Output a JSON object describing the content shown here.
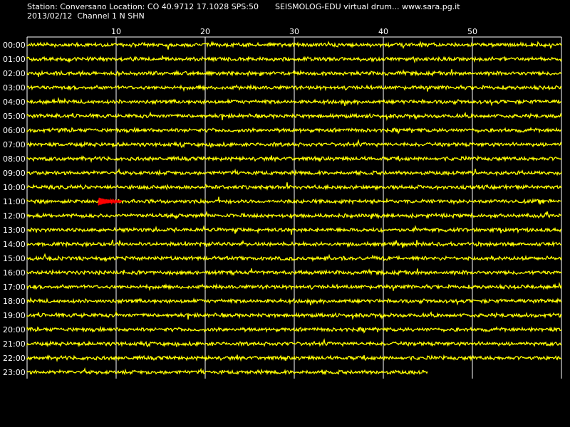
{
  "header": {
    "station_line": "Station: Conversano Location: CO 40.9712 17.1028 SPS:50",
    "brand_line": "SEISMOLOG-EDU virtual drum... www.sara.pg.it",
    "date_line": "2013/02/12  Channel 1 N SHN"
  },
  "chart_data": {
    "type": "line",
    "title": "SEISMOLOG-EDU virtual drum... www.sara.pg.it",
    "xlabel": "",
    "ylabel": "",
    "x_ticks": [
      10,
      20,
      30,
      40,
      50
    ],
    "xlim": [
      0,
      60
    ],
    "row_labels": [
      "00:00",
      "01:00",
      "02:00",
      "03:00",
      "04:00",
      "05:00",
      "06:00",
      "07:00",
      "08:00",
      "09:00",
      "10:00",
      "11:00",
      "12:00",
      "13:00",
      "14:00",
      "15:00",
      "16:00",
      "17:00",
      "18:00",
      "19:00",
      "20:00",
      "21:00",
      "22:00",
      "23:00"
    ],
    "last_row_end_minute": 45,
    "event": {
      "row": "11:00",
      "start_minute": 8,
      "end_minute": 10.6,
      "color": "#ff0000"
    },
    "grid": true,
    "trace_color": "#ffff00",
    "grid_color": "#ffffff",
    "background": "#000000"
  }
}
